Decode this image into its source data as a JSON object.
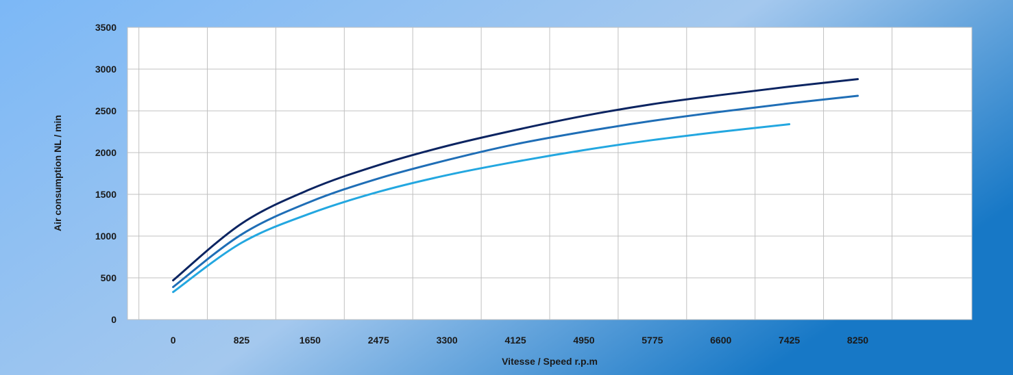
{
  "chart_data": {
    "type": "line",
    "title": "",
    "xlabel": "Vitesse / Speed r.p.m",
    "ylabel": "Air consumption NL / min",
    "xlim": [
      -550,
      9625
    ],
    "ylim": [
      0,
      3500
    ],
    "x_ticks": [
      "0",
      "825",
      "1650",
      "2475",
      "3300",
      "4125",
      "4950",
      "5775",
      "6600",
      "7425",
      "8250"
    ],
    "y_ticks": [
      "0",
      "500",
      "1000",
      "1500",
      "2000",
      "2500",
      "3000",
      "3500"
    ],
    "grid": true,
    "legend": "none",
    "series": [
      {
        "color": "#0b2461",
        "x": [
          0,
          825,
          1650,
          2475,
          3300,
          4125,
          4950,
          5775,
          6600,
          7425,
          8250
        ],
        "y": [
          470,
          1150,
          1560,
          1850,
          2080,
          2270,
          2440,
          2580,
          2690,
          2790,
          2880
        ]
      },
      {
        "color": "#1f6eb6",
        "x": [
          0,
          825,
          1650,
          2475,
          3300,
          4125,
          4950,
          5775,
          6600,
          7425,
          8250
        ],
        "y": [
          390,
          1020,
          1410,
          1690,
          1910,
          2100,
          2250,
          2380,
          2490,
          2590,
          2680
        ]
      },
      {
        "color": "#23a7e0",
        "x": [
          0,
          825,
          1650,
          2475,
          3300,
          4125,
          4950,
          5775,
          6600,
          7425
        ],
        "y": [
          330,
          920,
          1270,
          1530,
          1730,
          1890,
          2030,
          2150,
          2250,
          2340
        ]
      }
    ]
  },
  "colors": {
    "background_left": "#7cb8f6",
    "background_mid": "#a4c8ee",
    "background_right": "#1778c6",
    "plot_area": "#ffffff",
    "grid": "#c0c0c0"
  }
}
